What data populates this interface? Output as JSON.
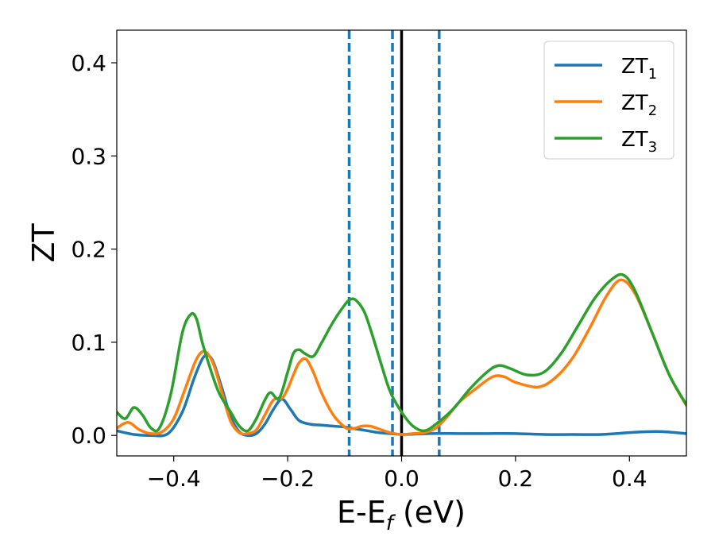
{
  "chart_data": {
    "type": "line",
    "xlabel": "E-E",
    "xlabel_sub": "f",
    "xlabel_unit": " (eV)",
    "ylabel": "ZT",
    "xlim": [
      -0.5,
      0.5
    ],
    "ylim": [
      -0.022,
      0.435
    ],
    "xticks": [
      -0.4,
      -0.2,
      0.0,
      0.2,
      0.4
    ],
    "xtick_labels": [
      "−0.4",
      "−0.2",
      "0.0",
      "0.2",
      "0.4"
    ],
    "yticks": [
      0.0,
      0.1,
      0.2,
      0.3,
      0.4
    ],
    "ytick_labels": [
      "0.0",
      "0.1",
      "0.2",
      "0.3",
      "0.4"
    ],
    "grid": false,
    "legend_position": "top-right",
    "vlines": [
      {
        "x": -0.092,
        "style": "dashed",
        "color": "#1f77b4"
      },
      {
        "x": -0.016,
        "style": "dashed",
        "color": "#1f77b4"
      },
      {
        "x": 0.0,
        "style": "solid",
        "color": "#000000"
      },
      {
        "x": 0.066,
        "style": "dashed",
        "color": "#1f77b4"
      }
    ],
    "series": [
      {
        "name": "ZT",
        "name_sub": "1",
        "color": "#1f77b4",
        "x": [
          -0.5,
          -0.47,
          -0.44,
          -0.41,
          -0.385,
          -0.365,
          -0.35,
          -0.34,
          -0.33,
          -0.315,
          -0.3,
          -0.285,
          -0.27,
          -0.255,
          -0.24,
          -0.225,
          -0.21,
          -0.195,
          -0.18,
          -0.16,
          -0.14,
          -0.12,
          -0.1,
          -0.08,
          -0.06,
          -0.04,
          -0.02,
          0.0,
          0.05,
          0.1,
          0.15,
          0.2,
          0.25,
          0.3,
          0.35,
          0.4,
          0.43,
          0.46,
          0.5
        ],
        "y": [
          0.005,
          0.001,
          0.0,
          0.002,
          0.025,
          0.06,
          0.082,
          0.086,
          0.078,
          0.05,
          0.02,
          0.004,
          0.0,
          0.002,
          0.012,
          0.028,
          0.039,
          0.028,
          0.016,
          0.012,
          0.011,
          0.01,
          0.009,
          0.007,
          0.005,
          0.003,
          0.002,
          0.001,
          0.002,
          0.002,
          0.002,
          0.002,
          0.001,
          0.001,
          0.001,
          0.003,
          0.004,
          0.004,
          0.002
        ]
      },
      {
        "name": "ZT",
        "name_sub": "2",
        "color": "#ff7f0e",
        "x": [
          -0.5,
          -0.48,
          -0.46,
          -0.44,
          -0.42,
          -0.4,
          -0.38,
          -0.36,
          -0.345,
          -0.33,
          -0.315,
          -0.3,
          -0.285,
          -0.27,
          -0.255,
          -0.24,
          -0.225,
          -0.21,
          -0.2,
          -0.19,
          -0.18,
          -0.168,
          -0.155,
          -0.14,
          -0.12,
          -0.1,
          -0.09,
          -0.08,
          -0.07,
          -0.055,
          -0.04,
          -0.02,
          0.0,
          0.02,
          0.04,
          0.06,
          0.08,
          0.1,
          0.13,
          0.16,
          0.18,
          0.2,
          0.24,
          0.27,
          0.3,
          0.33,
          0.36,
          0.385,
          0.41,
          0.44,
          0.47,
          0.5
        ],
        "y": [
          0.008,
          0.014,
          0.006,
          0.002,
          0.004,
          0.018,
          0.05,
          0.082,
          0.09,
          0.076,
          0.045,
          0.015,
          0.003,
          0.002,
          0.006,
          0.022,
          0.038,
          0.04,
          0.05,
          0.065,
          0.078,
          0.082,
          0.068,
          0.045,
          0.022,
          0.009,
          0.007,
          0.008,
          0.01,
          0.01,
          0.007,
          0.003,
          0.001,
          0.002,
          0.003,
          0.008,
          0.02,
          0.035,
          0.05,
          0.063,
          0.063,
          0.057,
          0.052,
          0.062,
          0.083,
          0.115,
          0.15,
          0.167,
          0.152,
          0.11,
          0.065,
          0.032
        ]
      },
      {
        "name": "ZT",
        "name_sub": "3",
        "color": "#2ca02c",
        "x": [
          -0.5,
          -0.485,
          -0.47,
          -0.455,
          -0.44,
          -0.425,
          -0.405,
          -0.385,
          -0.37,
          -0.36,
          -0.35,
          -0.335,
          -0.32,
          -0.3,
          -0.285,
          -0.27,
          -0.255,
          -0.24,
          -0.23,
          -0.215,
          -0.2,
          -0.19,
          -0.18,
          -0.17,
          -0.155,
          -0.14,
          -0.12,
          -0.1,
          -0.09,
          -0.08,
          -0.065,
          -0.05,
          -0.035,
          -0.02,
          0.0,
          0.02,
          0.04,
          0.06,
          0.09,
          0.12,
          0.15,
          0.17,
          0.19,
          0.22,
          0.25,
          0.28,
          0.31,
          0.34,
          0.37,
          0.39,
          0.41,
          0.44,
          0.47,
          0.5
        ],
        "y": [
          0.025,
          0.018,
          0.03,
          0.022,
          0.008,
          0.008,
          0.045,
          0.11,
          0.13,
          0.125,
          0.1,
          0.07,
          0.045,
          0.025,
          0.01,
          0.005,
          0.018,
          0.038,
          0.046,
          0.04,
          0.068,
          0.088,
          0.092,
          0.088,
          0.085,
          0.1,
          0.122,
          0.14,
          0.146,
          0.145,
          0.132,
          0.105,
          0.075,
          0.047,
          0.025,
          0.01,
          0.005,
          0.012,
          0.028,
          0.05,
          0.068,
          0.075,
          0.072,
          0.065,
          0.068,
          0.088,
          0.118,
          0.148,
          0.168,
          0.172,
          0.155,
          0.11,
          0.065,
          0.033
        ]
      }
    ]
  }
}
